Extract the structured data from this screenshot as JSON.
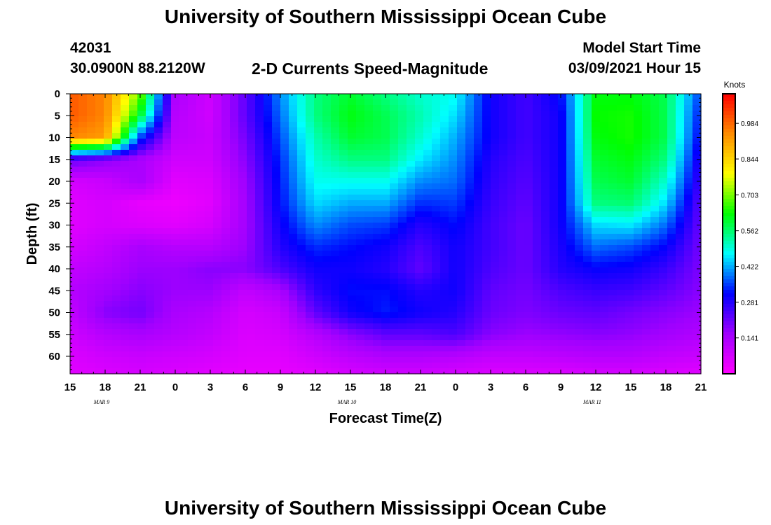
{
  "page": {
    "title_top": "University of Southern Mississippi Ocean Cube",
    "title_bottom": "University of Southern Mississippi Ocean Cube",
    "station_id": "42031",
    "location": "30.0900N 88.2120W",
    "plot_title": "2-D Currents Speed-Magnitude",
    "model_start_label": "Model Start Time",
    "model_start_value": "03/09/2021 Hour 15"
  },
  "chart_data": {
    "type": "heatmap",
    "title": "2-D Currents Speed-Magnitude",
    "xlabel": "Forecast Time(Z)",
    "ylabel": "Depth (ft)",
    "x_tick_labels": [
      "15",
      "18",
      "21",
      "0",
      "3",
      "6",
      "9",
      "12",
      "15",
      "18",
      "21",
      "0",
      "3",
      "6",
      "9",
      "12",
      "15",
      "18",
      "21"
    ],
    "date_labels": [
      "MAR 9",
      "MAR 10",
      "MAR 11"
    ],
    "y_tick_labels": [
      "0",
      "5",
      "10",
      "15",
      "20",
      "25",
      "30",
      "35",
      "40",
      "45",
      "50",
      "55",
      "60"
    ],
    "ylim": [
      0,
      64
    ],
    "y_reversed": true,
    "colorbar": {
      "unit": "Knots",
      "tick_labels": [
        "0.984",
        "0.844",
        "0.703",
        "0.562",
        "0.422",
        "0.281",
        "0.141"
      ],
      "range": [
        0,
        1.1
      ],
      "colors": [
        "#ff00ff",
        "#a000ff",
        "#0000ff",
        "#00ffff",
        "#00ff00",
        "#ffff00",
        "#ff8c00",
        "#ff0000"
      ]
    },
    "x_hours": [
      0,
      3,
      6,
      9,
      12,
      15,
      18,
      21,
      24,
      27,
      30,
      33,
      36,
      39,
      42,
      45,
      48,
      51,
      54
    ],
    "depths": [
      0,
      5,
      10,
      15,
      20,
      25,
      30,
      35,
      40,
      45,
      50,
      55,
      60,
      64
    ],
    "values": [
      [
        1.0,
        0.95,
        0.7,
        0.14,
        0.08,
        0.22,
        0.4,
        0.55,
        0.6,
        0.55,
        0.5,
        0.48,
        0.3,
        0.25,
        0.32,
        0.62,
        0.62,
        0.58,
        0.35
      ],
      [
        1.0,
        0.95,
        0.6,
        0.12,
        0.08,
        0.22,
        0.38,
        0.55,
        0.62,
        0.58,
        0.52,
        0.45,
        0.3,
        0.25,
        0.3,
        0.63,
        0.64,
        0.58,
        0.32
      ],
      [
        0.95,
        0.92,
        0.35,
        0.11,
        0.09,
        0.2,
        0.36,
        0.52,
        0.6,
        0.58,
        0.5,
        0.42,
        0.3,
        0.25,
        0.3,
        0.62,
        0.64,
        0.58,
        0.3
      ],
      [
        0.22,
        0.18,
        0.14,
        0.08,
        0.08,
        0.18,
        0.34,
        0.5,
        0.55,
        0.55,
        0.46,
        0.4,
        0.28,
        0.24,
        0.3,
        0.6,
        0.62,
        0.55,
        0.27
      ],
      [
        0.07,
        0.09,
        0.14,
        0.05,
        0.06,
        0.16,
        0.33,
        0.48,
        0.48,
        0.48,
        0.4,
        0.38,
        0.27,
        0.23,
        0.3,
        0.58,
        0.6,
        0.5,
        0.25
      ],
      [
        0.05,
        0.07,
        0.04,
        0.03,
        0.05,
        0.15,
        0.32,
        0.45,
        0.42,
        0.42,
        0.34,
        0.35,
        0.26,
        0.22,
        0.3,
        0.55,
        0.56,
        0.45,
        0.22
      ],
      [
        0.05,
        0.07,
        0.06,
        0.05,
        0.07,
        0.15,
        0.3,
        0.4,
        0.36,
        0.35,
        0.28,
        0.32,
        0.25,
        0.21,
        0.3,
        0.45,
        0.46,
        0.38,
        0.21
      ],
      [
        0.07,
        0.1,
        0.14,
        0.12,
        0.12,
        0.16,
        0.28,
        0.34,
        0.32,
        0.3,
        0.24,
        0.3,
        0.25,
        0.21,
        0.29,
        0.38,
        0.36,
        0.31,
        0.2
      ],
      [
        0.1,
        0.12,
        0.16,
        0.16,
        0.18,
        0.18,
        0.24,
        0.3,
        0.3,
        0.28,
        0.22,
        0.3,
        0.24,
        0.21,
        0.28,
        0.31,
        0.3,
        0.26,
        0.19
      ],
      [
        0.12,
        0.15,
        0.18,
        0.16,
        0.16,
        0.1,
        0.14,
        0.27,
        0.32,
        0.32,
        0.28,
        0.3,
        0.22,
        0.2,
        0.24,
        0.26,
        0.25,
        0.22,
        0.18
      ],
      [
        0.1,
        0.18,
        0.2,
        0.14,
        0.12,
        0.07,
        0.09,
        0.22,
        0.3,
        0.33,
        0.3,
        0.28,
        0.21,
        0.19,
        0.21,
        0.22,
        0.2,
        0.18,
        0.16
      ],
      [
        0.08,
        0.12,
        0.14,
        0.12,
        0.1,
        0.06,
        0.07,
        0.12,
        0.18,
        0.22,
        0.22,
        0.24,
        0.18,
        0.16,
        0.17,
        0.18,
        0.17,
        0.15,
        0.13
      ],
      [
        0.06,
        0.08,
        0.09,
        0.08,
        0.07,
        0.05,
        0.05,
        0.08,
        0.11,
        0.13,
        0.13,
        0.12,
        0.1,
        0.1,
        0.11,
        0.12,
        0.12,
        0.1,
        0.09
      ],
      [
        0.05,
        0.06,
        0.07,
        0.06,
        0.05,
        0.04,
        0.04,
        0.05,
        0.07,
        0.08,
        0.08,
        0.07,
        0.06,
        0.06,
        0.06,
        0.07,
        0.07,
        0.06,
        0.05
      ]
    ]
  }
}
